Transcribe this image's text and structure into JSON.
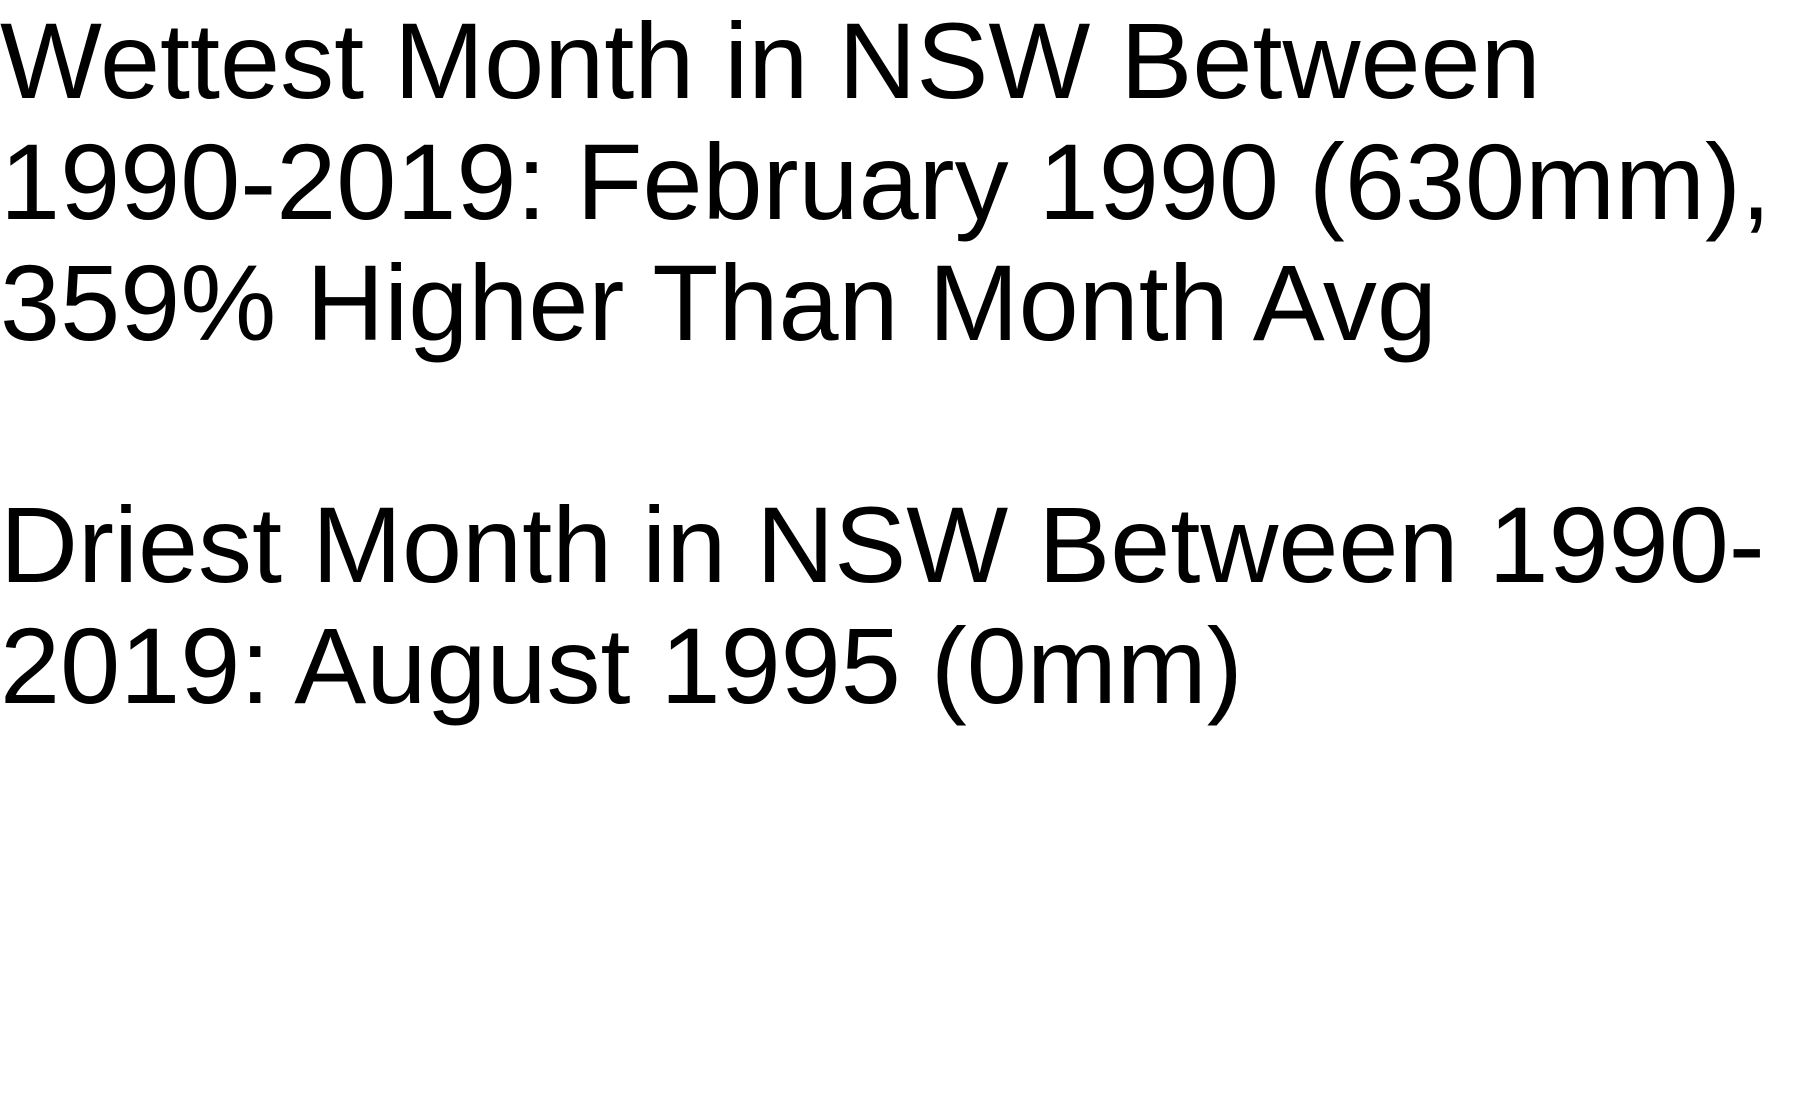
{
  "stats": {
    "wettest": "Wettest Month in NSW Between 1990-2019: February 1990 (630mm), 359% Higher Than Month Avg",
    "driest": "Driest Month in NSW Between 1990-2019: August 1995 (0mm)"
  },
  "colors": {
    "background": "#ffffff",
    "text": "#000000"
  }
}
